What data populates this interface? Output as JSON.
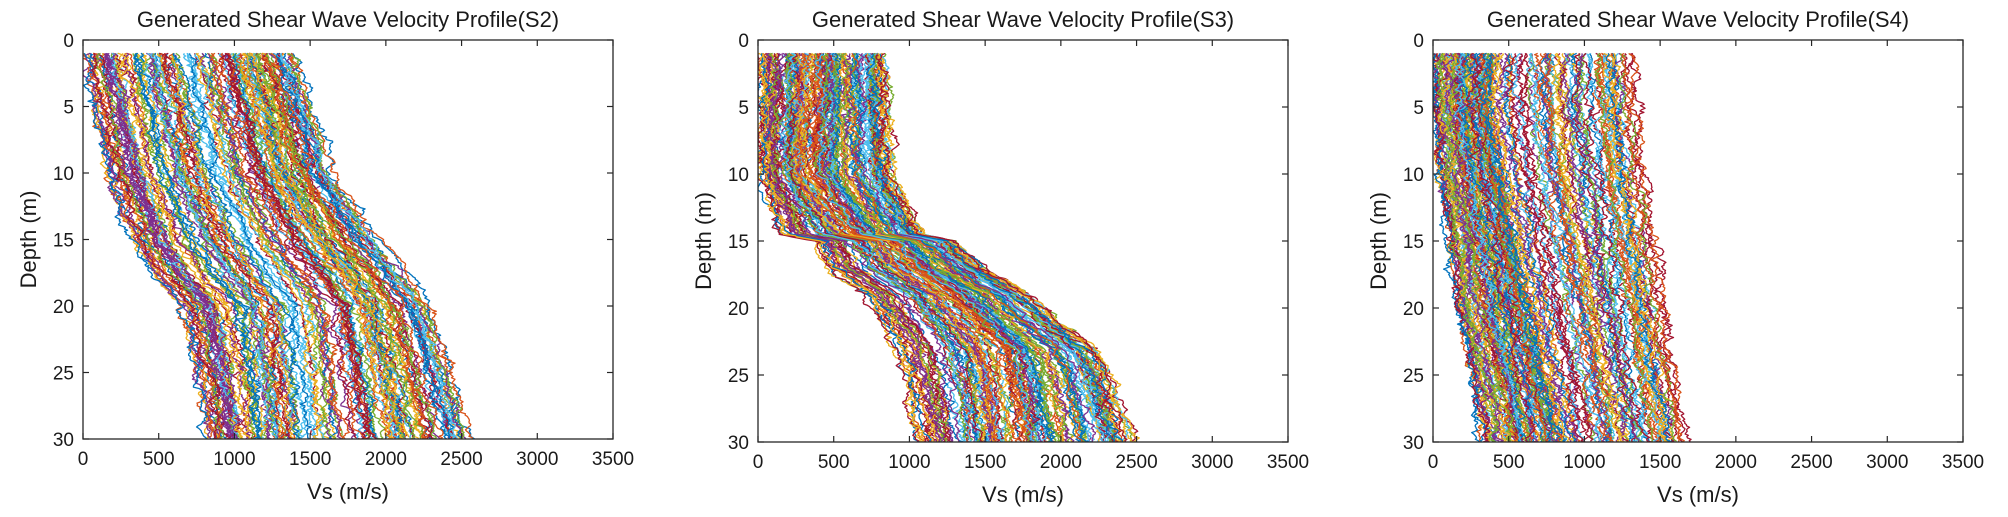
{
  "figure": {
    "series_colors": [
      "#0072BD",
      "#D95319",
      "#EDB120",
      "#7E2F8E",
      "#77AC30",
      "#4DBEEE",
      "#A2142F"
    ]
  },
  "chart_data": [
    {
      "type": "line",
      "title": "Generated Shear Wave Velocity Profile(S2)",
      "xlabel": "Vs (m/s)",
      "ylabel": "Depth (m)",
      "xlim": [
        0,
        3500
      ],
      "ylim": [
        0,
        30
      ],
      "y_reversed": true,
      "grid": false,
      "legend": "none",
      "xticks": [
        "0",
        "500",
        "1000",
        "1500",
        "2000",
        "2500",
        "3000",
        "3500"
      ],
      "yticks": [
        "0",
        "5",
        "10",
        "15",
        "20",
        "25",
        "30"
      ],
      "profile_count": 160,
      "depth_range_m": [
        1,
        30
      ],
      "envelope": {
        "depth_m": [
          1,
          10,
          15,
          17.5,
          20,
          25,
          30
        ],
        "vs_min": [
          0,
          150,
          320,
          450,
          650,
          750,
          820
        ],
        "vs_median": [
          750,
          950,
          1150,
          1300,
          1450,
          1500,
          1550
        ],
        "vs_max": [
          1400,
          1650,
          1950,
          2150,
          2300,
          2450,
          2600
        ]
      }
    },
    {
      "type": "line",
      "title": "Generated Shear Wave Velocity Profile(S3)",
      "xlabel": "Vs (m/s)",
      "ylabel": "Depth (m)",
      "xlim": [
        0,
        3500
      ],
      "ylim": [
        0,
        30
      ],
      "y_reversed": true,
      "grid": false,
      "legend": "none",
      "xticks": [
        "0",
        "500",
        "1000",
        "1500",
        "2000",
        "2500",
        "3000",
        "3500"
      ],
      "yticks": [
        "0",
        "5",
        "10",
        "15",
        "20",
        "25",
        "30"
      ],
      "profile_count": 160,
      "depth_range_m": [
        1,
        30
      ],
      "envelope": {
        "depth_m": [
          1,
          10,
          14.5,
          15,
          17,
          19,
          21,
          23,
          25,
          30
        ],
        "vs_min": [
          0,
          20,
          150,
          380,
          450,
          700,
          800,
          900,
          950,
          1050
        ],
        "vs_median": [
          350,
          300,
          600,
          850,
          1000,
          1250,
          1400,
          1550,
          1600,
          1650
        ],
        "vs_max": [
          850,
          900,
          1100,
          1300,
          1500,
          1800,
          2000,
          2250,
          2350,
          2500
        ]
      }
    },
    {
      "type": "line",
      "title": "Generated Shear Wave Velocity Profile(S4)",
      "xlabel": "Vs (m/s)",
      "ylabel": "Depth (m)",
      "xlim": [
        0,
        3500
      ],
      "ylim": [
        0,
        30
      ],
      "y_reversed": true,
      "grid": false,
      "legend": "none",
      "xticks": [
        "0",
        "500",
        "1000",
        "1500",
        "2000",
        "2500",
        "3000",
        "3500"
      ],
      "yticks": [
        "0",
        "5",
        "10",
        "15",
        "20",
        "25",
        "30"
      ],
      "profile_count": 160,
      "depth_range_m": [
        1,
        30
      ],
      "envelope": {
        "depth_m": [
          1,
          5,
          10,
          15,
          20,
          25,
          30
        ],
        "vs_min": [
          0,
          0,
          30,
          100,
          150,
          250,
          330
        ],
        "vs_median": [
          400,
          380,
          450,
          550,
          650,
          750,
          850
        ],
        "vs_max": [
          1350,
          1380,
          1420,
          1480,
          1550,
          1620,
          1700
        ]
      }
    }
  ]
}
